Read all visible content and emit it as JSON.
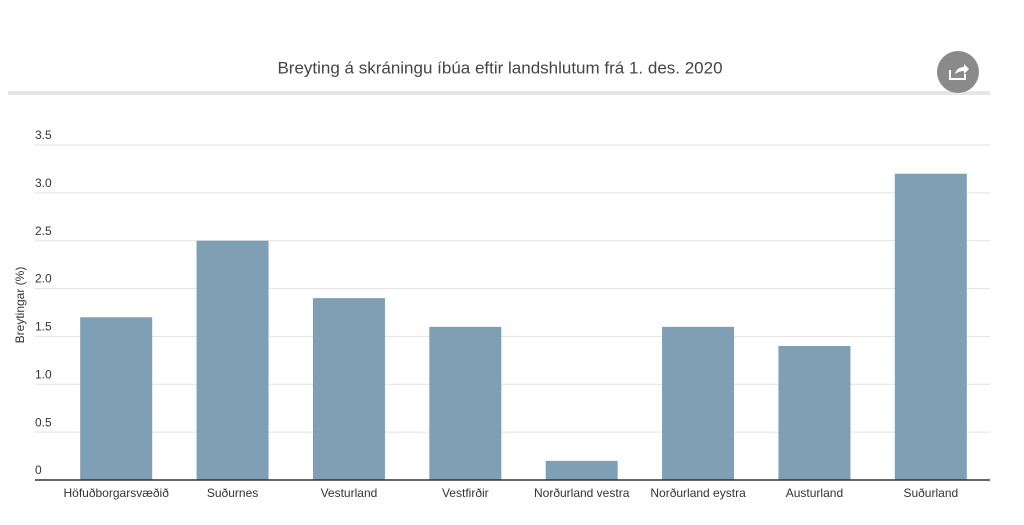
{
  "chart_data": {
    "type": "bar",
    "title": "Breyting á skráningu íbúa eftir landshlutum frá 1. des. 2020",
    "y_axis_label": "Breytingar (%)",
    "categories": [
      "Höfuðborgarsvæðið",
      "Suðurnes",
      "Vesturland",
      "Vestfirðir",
      "Norðurland vestra",
      "Norðurland eystra",
      "Austurland",
      "Suðurland"
    ],
    "values": [
      1.7,
      2.5,
      1.9,
      1.6,
      0.2,
      1.6,
      1.4,
      3.2
    ],
    "color": "#7f9fb4",
    "ylim": [
      0,
      3.5
    ],
    "yticks": [
      0,
      0.5,
      {
        "value": 1,
        "label": "1.0"
      },
      1.5,
      {
        "value": 2,
        "label": "2.0"
      },
      2.5,
      {
        "value": 3,
        "label": "3.0"
      },
      3.5
    ],
    "grid": true
  }
}
